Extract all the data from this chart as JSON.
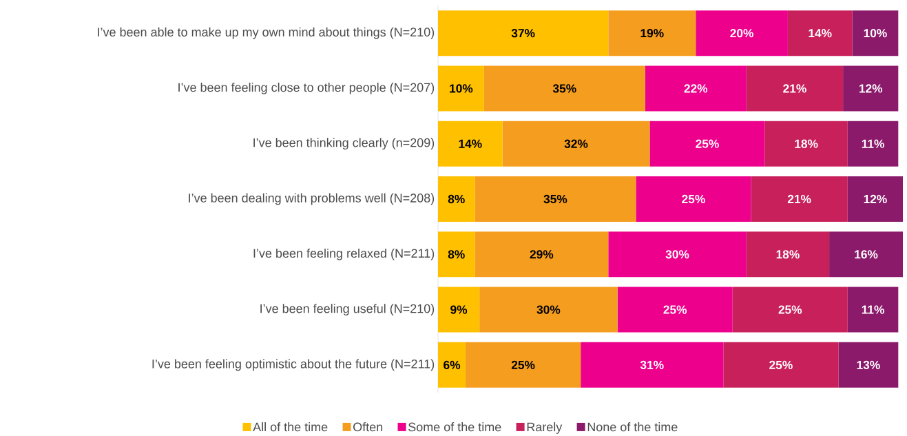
{
  "chart_data": {
    "type": "bar",
    "orientation": "horizontal",
    "stacked": true,
    "legend": "bottom",
    "categories": [
      "I’ve been able to make up my own mind about things (N=210)",
      "I’ve been feeling close to other people (N=207)",
      "I’ve been thinking clearly (n=209)",
      "I’ve been dealing with problems well (N=208)",
      "I’ve been feeling relaxed (N=211)",
      "I’ve been feeling useful (N=210)",
      "I’ve been feeling optimistic about the future (N=211)"
    ],
    "series": [
      {
        "name": "All of the time",
        "color": "#ffc000",
        "values": [
          37,
          10,
          14,
          8,
          8,
          9,
          6
        ],
        "value_labels": [
          "37%",
          "10%",
          "14%",
          "8%",
          "8%",
          "9%",
          "6%"
        ]
      },
      {
        "name": "Often",
        "color": "#f59d1e",
        "values": [
          19,
          35,
          32,
          35,
          29,
          30,
          25
        ],
        "value_labels": [
          "19%",
          "35%",
          "32%",
          "35%",
          "29%",
          "30%",
          "25%"
        ]
      },
      {
        "name": "Some of the time",
        "color": "#ec008c",
        "values": [
          20,
          22,
          25,
          25,
          30,
          25,
          31
        ],
        "value_labels": [
          "20%",
          "22%",
          "25%",
          "25%",
          "30%",
          "25%",
          "31%"
        ]
      },
      {
        "name": "Rarely",
        "color": "#c8205a",
        "values": [
          14,
          21,
          18,
          21,
          18,
          25,
          25
        ],
        "value_labels": [
          "14%",
          "21%",
          "18%",
          "21%",
          "18%",
          "25%",
          "25%"
        ]
      },
      {
        "name": "None of the time",
        "color": "#8b1a6b",
        "values": [
          10,
          12,
          11,
          12,
          16,
          11,
          13
        ],
        "value_labels": [
          "10%",
          "12%",
          "11%",
          "12%",
          "16%",
          "11%",
          "13%"
        ]
      }
    ]
  }
}
